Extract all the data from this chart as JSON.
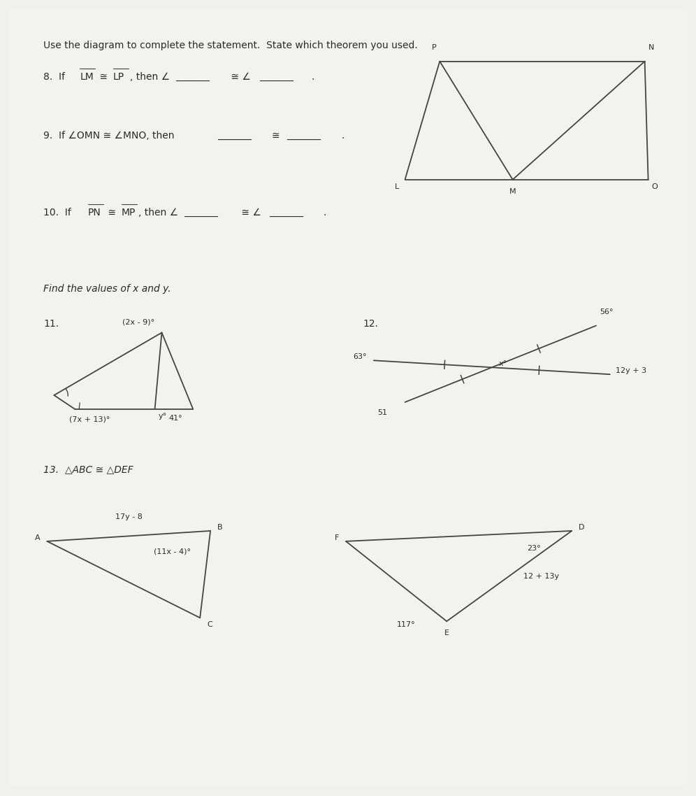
{
  "bg_color": "#dcdcd8",
  "text_color": "#2a2a2a",
  "line_color": "#444444",
  "page_bg": "#f0f0ec",
  "title": "Use the diagram to complete the statement.  State which theorem you used.",
  "q8": "8.  If ̅L̅M̅ ≅ ̅L̅P̅, then ∠_______ ≅ ∠_______.",
  "q9": "9.  If ∠OMN ≅ ∠MNO, then _______ ≅ _______.",
  "q10": "10.  If ̅P̅N̅ ≅ ̅M̅P̅, then ∠_______ ≅ ∠_______.",
  "find": "Find the values of x and y.",
  "q11_num": "11.",
  "q12_num": "12.",
  "q13": "13.  △ABC ≅ △DEF",
  "fs_main": 10,
  "fs_small": 8,
  "fs_label": 8
}
